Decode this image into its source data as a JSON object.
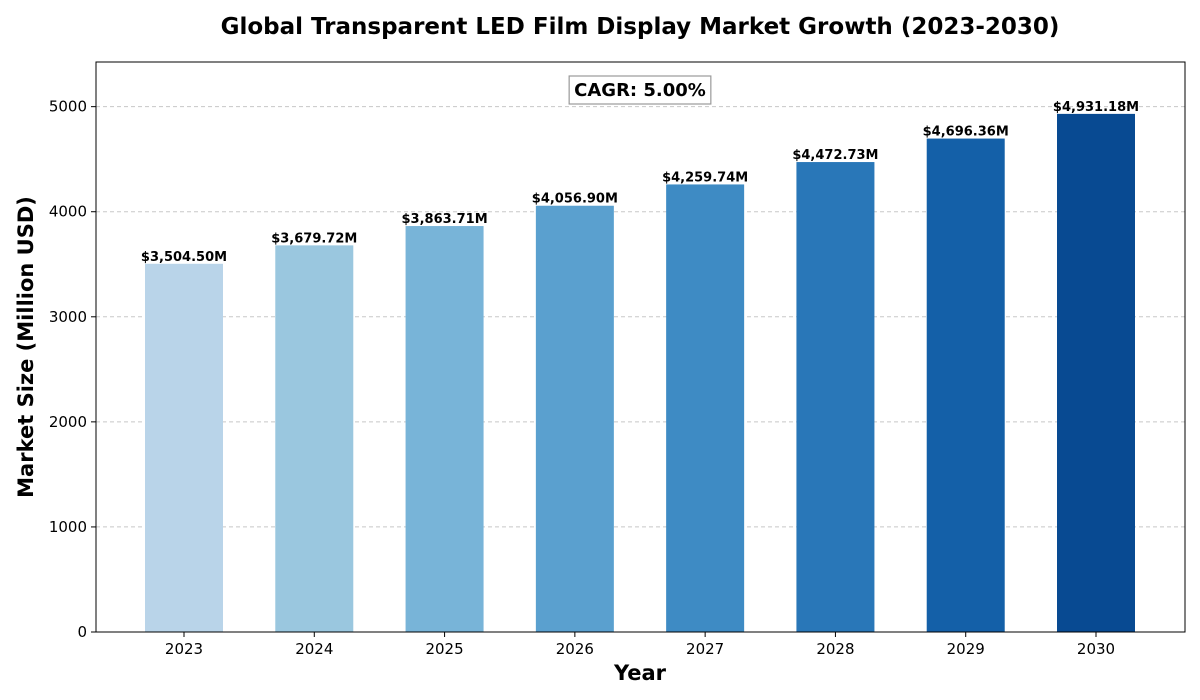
{
  "chart_data": {
    "type": "bar",
    "title": "Global Transparent LED Film Display Market Growth (2023-2030)",
    "xlabel": "Year",
    "ylabel": "Market Size (Million USD)",
    "categories": [
      "2023",
      "2024",
      "2025",
      "2026",
      "2027",
      "2028",
      "2029",
      "2030"
    ],
    "values": [
      3504.5,
      3679.72,
      3863.71,
      4056.9,
      4259.74,
      4472.73,
      4696.36,
      4931.18
    ],
    "data_labels": [
      "$3,504.50M",
      "$3,679.72M",
      "$3,863.71M",
      "$4,056.90M",
      "$4,259.74M",
      "$4,472.73M",
      "$4,696.36M",
      "$4,931.18M"
    ],
    "colors": [
      "#b9d4e9",
      "#9ac7df",
      "#78b4d8",
      "#5aa0cf",
      "#3e8bc4",
      "#2977b8",
      "#1460a8",
      "#084a92"
    ],
    "ylim": [
      0,
      5425
    ],
    "yticks": [
      0,
      1000,
      2000,
      3000,
      4000,
      5000
    ],
    "grid": "y-dashed",
    "annotation": "CAGR: 5.00%"
  }
}
